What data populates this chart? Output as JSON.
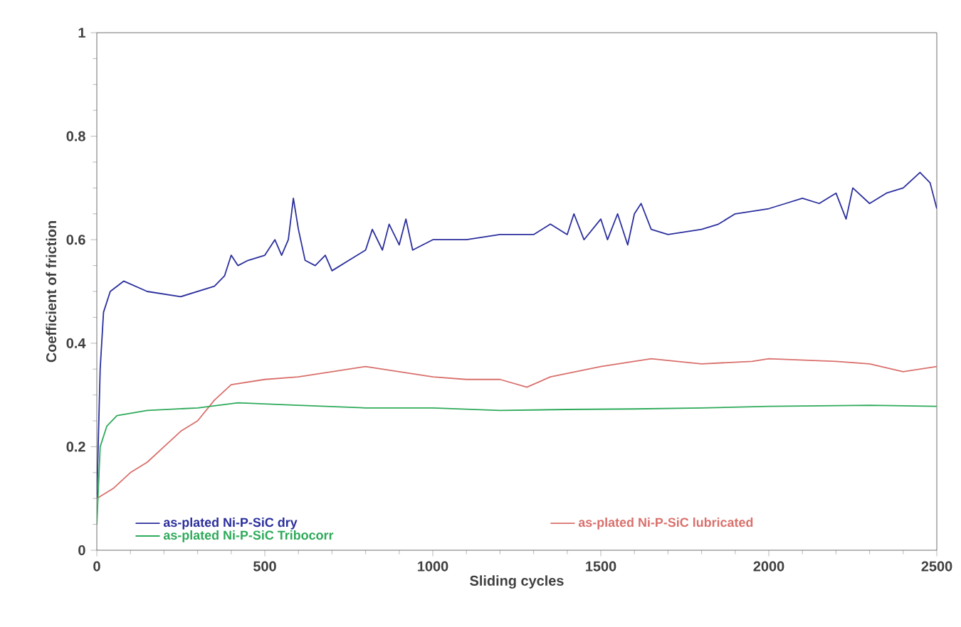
{
  "chart_data": {
    "type": "line",
    "xlabel": "Sliding cycles",
    "ylabel": "Coefficient of friction",
    "xlim": [
      0,
      2500
    ],
    "ylim": [
      0,
      1
    ],
    "xticks": [
      0,
      500,
      1000,
      1500,
      2000,
      2500
    ],
    "yticks": [
      0,
      0.2,
      0.4,
      0.6,
      0.8,
      1
    ],
    "grid": false,
    "legend": "bottom",
    "marker": "none",
    "line_style": "solid",
    "series": [
      {
        "name": "as-plated Ni-P-SiC dry",
        "color": "#2b2f9c",
        "x": [
          0,
          10,
          20,
          40,
          80,
          150,
          250,
          350,
          380,
          400,
          420,
          450,
          500,
          530,
          550,
          570,
          585,
          600,
          620,
          650,
          680,
          700,
          750,
          800,
          820,
          850,
          870,
          900,
          920,
          940,
          1000,
          1100,
          1200,
          1300,
          1350,
          1400,
          1420,
          1450,
          1500,
          1520,
          1550,
          1580,
          1600,
          1620,
          1650,
          1700,
          1800,
          1850,
          1900,
          2000,
          2050,
          2100,
          2150,
          2200,
          2230,
          2250,
          2300,
          2350,
          2400,
          2450,
          2480,
          2500
        ],
        "values": [
          0.1,
          0.35,
          0.46,
          0.5,
          0.52,
          0.5,
          0.49,
          0.51,
          0.53,
          0.57,
          0.55,
          0.56,
          0.57,
          0.6,
          0.57,
          0.6,
          0.68,
          0.62,
          0.56,
          0.55,
          0.57,
          0.54,
          0.56,
          0.58,
          0.62,
          0.58,
          0.63,
          0.59,
          0.64,
          0.58,
          0.6,
          0.6,
          0.61,
          0.61,
          0.63,
          0.61,
          0.65,
          0.6,
          0.64,
          0.6,
          0.65,
          0.59,
          0.65,
          0.67,
          0.62,
          0.61,
          0.62,
          0.63,
          0.65,
          0.66,
          0.67,
          0.68,
          0.67,
          0.69,
          0.64,
          0.7,
          0.67,
          0.69,
          0.7,
          0.73,
          0.71,
          0.66
        ]
      },
      {
        "name": "as-plated Ni-P-SiC lubricated",
        "color": "#d9706c",
        "x": [
          0,
          50,
          100,
          150,
          200,
          250,
          300,
          350,
          400,
          450,
          500,
          600,
          700,
          800,
          900,
          1000,
          1100,
          1200,
          1280,
          1350,
          1500,
          1650,
          1800,
          1950,
          2000,
          2200,
          2300,
          2400,
          2500
        ],
        "values": [
          0.1,
          0.12,
          0.15,
          0.17,
          0.2,
          0.23,
          0.25,
          0.29,
          0.32,
          0.325,
          0.33,
          0.335,
          0.345,
          0.355,
          0.345,
          0.335,
          0.33,
          0.33,
          0.315,
          0.335,
          0.355,
          0.37,
          0.36,
          0.365,
          0.37,
          0.365,
          0.36,
          0.345,
          0.355
        ]
      },
      {
        "name": "as-plated Ni-P-SiC Tribocorr",
        "color": "#2eaa5a",
        "x": [
          0,
          10,
          30,
          60,
          150,
          300,
          420,
          600,
          800,
          1000,
          1200,
          1400,
          1600,
          1800,
          2000,
          2300,
          2500
        ],
        "values": [
          0.05,
          0.2,
          0.24,
          0.26,
          0.27,
          0.275,
          0.285,
          0.28,
          0.275,
          0.275,
          0.27,
          0.272,
          0.273,
          0.275,
          0.278,
          0.28,
          0.278
        ]
      }
    ]
  }
}
